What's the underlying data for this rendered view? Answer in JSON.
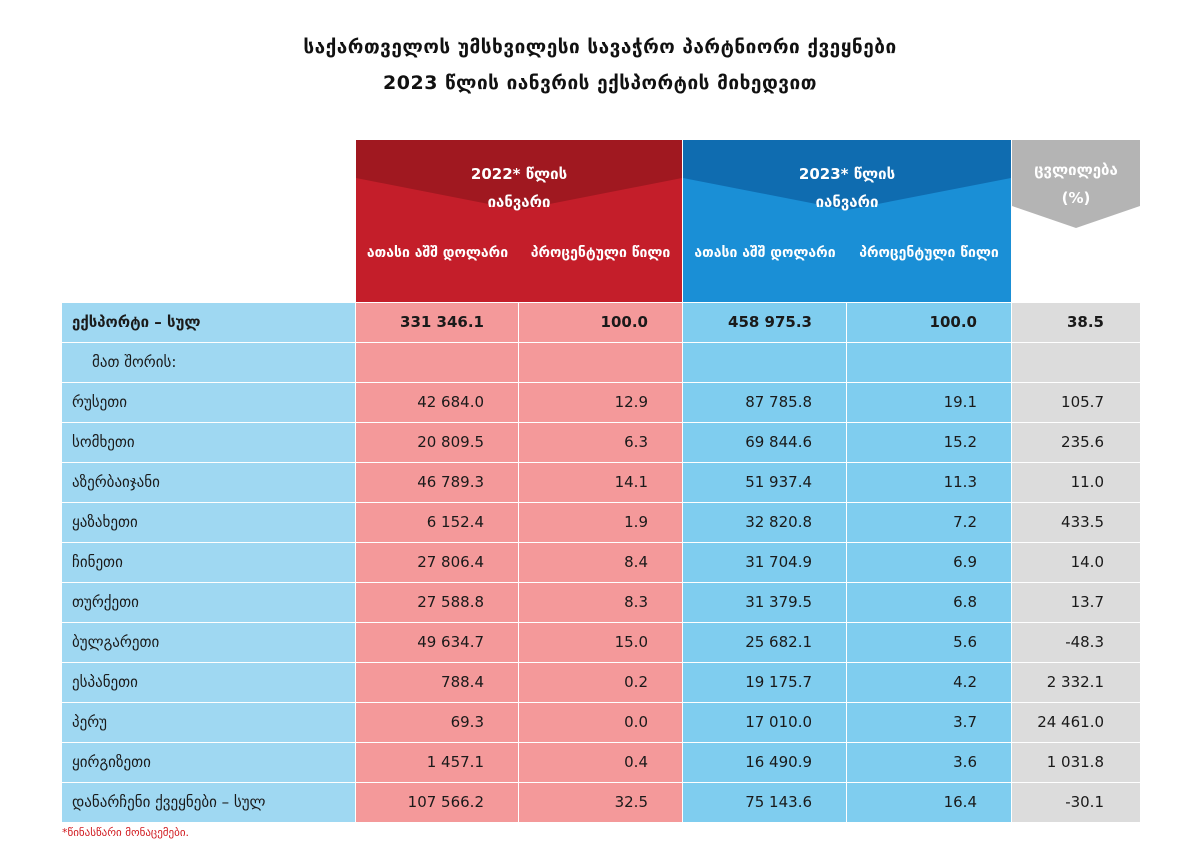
{
  "title_line1": "საქართველოს უმსხვილესი სავაჭრო პარტნიორი ქვეყნები",
  "title_line2": "2023 წლის იანვრის ექსპორტის მიხედვით",
  "header": {
    "y2022_title": "2022* წლის",
    "y2022_title2": "იანვარი",
    "y2023_title": "2023* წლის",
    "y2023_title2": "იანვარი",
    "change_title": "ცვლილება",
    "change_unit": "(%)",
    "col_usd": "ათასი აშშ დოლარი",
    "col_share": "პროცენტული წილი",
    "col_usd_b": "ათასი აშშ დოლარი",
    "col_share_b": "პროცენტული წილი"
  },
  "total": {
    "label": "ექსპორტი – სულ",
    "v2022": "331 346.1",
    "s2022": "100.0",
    "v2023": "458 975.3",
    "s2023": "100.0",
    "change": "38.5"
  },
  "subheader": "მათ შორის:",
  "rows": [
    {
      "label": "რუსეთი",
      "v2022": "42 684.0",
      "s2022": "12.9",
      "v2023": "87 785.8",
      "s2023": "19.1",
      "change": "105.7"
    },
    {
      "label": "სომხეთი",
      "v2022": "20 809.5",
      "s2022": "6.3",
      "v2023": "69 844.6",
      "s2023": "15.2",
      "change": "235.6"
    },
    {
      "label": "აზერბაიჯანი",
      "v2022": "46 789.3",
      "s2022": "14.1",
      "v2023": "51 937.4",
      "s2023": "11.3",
      "change": "11.0"
    },
    {
      "label": "ყაზახეთი",
      "v2022": "6 152.4",
      "s2022": "1.9",
      "v2023": "32 820.8",
      "s2023": "7.2",
      "change": "433.5"
    },
    {
      "label": "ჩინეთი",
      "v2022": "27 806.4",
      "s2022": "8.4",
      "v2023": "31 704.9",
      "s2023": "6.9",
      "change": "14.0"
    },
    {
      "label": "თურქეთი",
      "v2022": "27 588.8",
      "s2022": "8.3",
      "v2023": "31 379.5",
      "s2023": "6.8",
      "change": "13.7"
    },
    {
      "label": "ბულგარეთი",
      "v2022": "49 634.7",
      "s2022": "15.0",
      "v2023": "25 682.1",
      "s2023": "5.6",
      "change": "-48.3"
    },
    {
      "label": "ესპანეთი",
      "v2022": "788.4",
      "s2022": "0.2",
      "v2023": "19 175.7",
      "s2023": "4.2",
      "change": "2 332.1"
    },
    {
      "label": "პერუ",
      "v2022": "69.3",
      "s2022": "0.0",
      "v2023": "17 010.0",
      "s2023": "3.7",
      "change": "24 461.0"
    },
    {
      "label": "ყირგიზეთი",
      "v2022": "1 457.1",
      "s2022": "0.4",
      "v2023": "16 490.9",
      "s2023": "3.6",
      "change": "1 031.8"
    },
    {
      "label": "დანარჩენი ქვეყნები – სულ",
      "v2022": "107 566.2",
      "s2022": "32.5",
      "v2023": "75 143.6",
      "s2023": "16.4",
      "change": "-30.1"
    }
  ],
  "footnote": "*წინასწარი მონაცემები.",
  "colors": {
    "red_header": "#c41e2a",
    "red_dark": "#a01820",
    "blue_header": "#1a8fd6",
    "blue_dark": "#0f6cb0",
    "grey_header": "#b4b4b4",
    "label_cell": "#9fd8f2",
    "pink_cell": "#f4999a",
    "blue_cell": "#7fcdef",
    "grey_cell": "#dcdcdc"
  }
}
